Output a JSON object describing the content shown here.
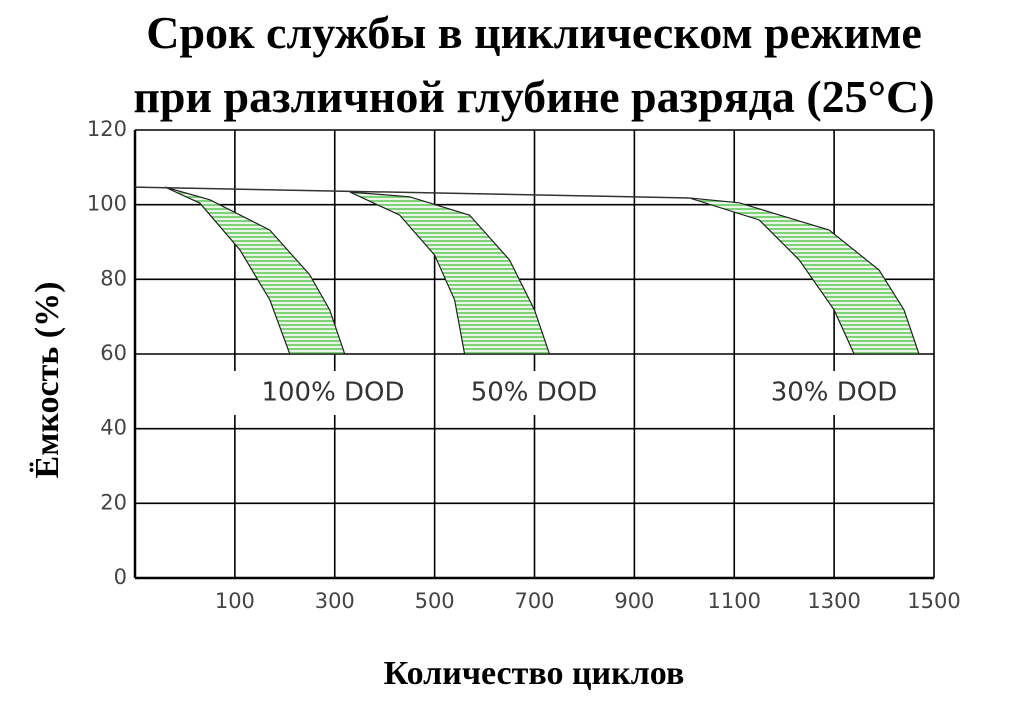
{
  "chart_data": {
    "type": "band",
    "title": [
      "Срок службы в циклическом режиме",
      "при различной глубине разряда  (25°С)"
    ],
    "x_label": "Количество циклов",
    "y_label": "Ёмкость (%)",
    "xlim": [
      -100,
      1500
    ],
    "xticks": [
      100,
      300,
      500,
      700,
      900,
      1100,
      1300,
      1500
    ],
    "ylim": [
      0,
      120
    ],
    "yticks": [
      0,
      20,
      40,
      60,
      80,
      100,
      120
    ],
    "grid": true,
    "series": [
      {
        "color": "#333333",
        "x": [
          -100,
          1010
        ],
        "values": [
          104.7,
          101.8
        ]
      }
    ],
    "bands": [
      {
        "label": "100% DOD",
        "color": "#7fd17a",
        "left": {
          "x": [
            -40,
            30,
            110,
            170,
            210
          ],
          "values": [
            104.7,
            100.4,
            87.9,
            74.5,
            60
          ]
        },
        "right": {
          "x": [
            -40,
            50,
            170,
            250,
            290,
            320
          ],
          "values": [
            104.7,
            101.3,
            93.2,
            81.2,
            71.8,
            60
          ]
        }
      },
      {
        "label": "50% DOD",
        "color": "#7fd17a",
        "left": {
          "x": [
            330,
            430,
            500,
            540,
            560
          ],
          "values": [
            103.4,
            97.2,
            86.5,
            74.5,
            60
          ]
        },
        "right": {
          "x": [
            330,
            450,
            570,
            650,
            700,
            730
          ],
          "values": [
            103.4,
            102.1,
            97.2,
            85.2,
            71.8,
            60
          ]
        }
      },
      {
        "label": "30% DOD",
        "color": "#7fd17a",
        "left": {
          "x": [
            1010,
            1150,
            1230,
            1300,
            1340
          ],
          "values": [
            101.8,
            95.9,
            85.2,
            71.8,
            60
          ]
        },
        "right": {
          "x": [
            1010,
            1110,
            1290,
            1390,
            1440,
            1470
          ],
          "values": [
            101.8,
            100.5,
            93.2,
            82.5,
            71.8,
            60
          ]
        }
      }
    ]
  }
}
